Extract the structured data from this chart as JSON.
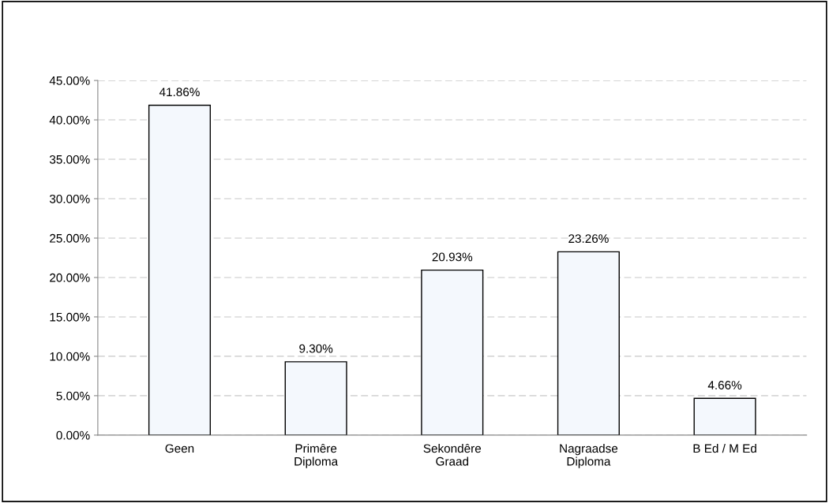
{
  "chart_data": {
    "type": "bar",
    "categories": [
      "Geen",
      "Primêre\nDiploma",
      "Sekondêre\nGraad",
      "Nagraadse\nDiploma",
      "B Ed / M Ed"
    ],
    "values": [
      41.86,
      9.3,
      20.93,
      23.26,
      4.66
    ],
    "value_labels": [
      "41.86%",
      "9.30%",
      "20.93%",
      "23.26%",
      "4.66%"
    ],
    "color": "#f4f8fd",
    "ylim": [
      0,
      45
    ],
    "yticks": [
      {
        "value": 0,
        "label": "0.00%"
      },
      {
        "value": 5,
        "label": "5.00%"
      },
      {
        "value": 10,
        "label": "10.00%"
      },
      {
        "value": 15,
        "label": "15.00%"
      },
      {
        "value": 20,
        "label": "20.00%"
      },
      {
        "value": 25,
        "label": "25.00%"
      },
      {
        "value": 30,
        "label": "30.00%"
      },
      {
        "value": 35,
        "label": "35.00%"
      },
      {
        "value": 40,
        "label": "40.00%"
      },
      {
        "value": 45,
        "label": "45.00%"
      }
    ],
    "grid": "y",
    "legend": false
  }
}
